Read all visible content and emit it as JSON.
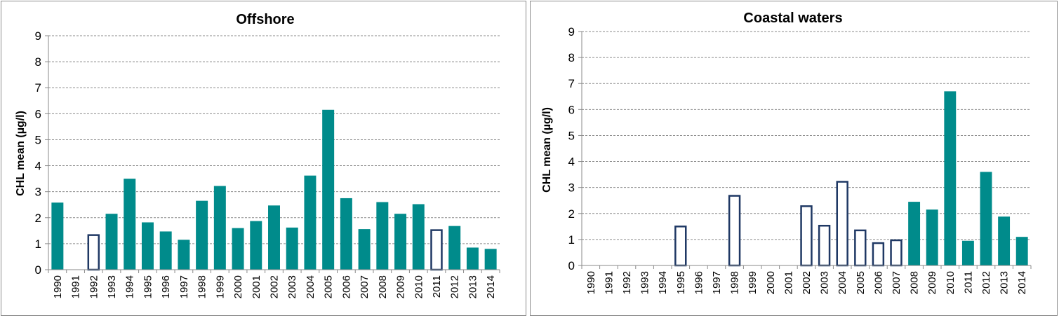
{
  "chart_data": [
    {
      "type": "bar",
      "title": "Offshore",
      "ylabel": "CHL mean  (µg/l)",
      "xlabel": "",
      "ylim": [
        0,
        9
      ],
      "yticks": [
        0,
        1,
        2,
        3,
        4,
        5,
        6,
        7,
        8,
        9
      ],
      "grid": "horizontal dashed",
      "colors": {
        "filled": "#008b8b",
        "outline": "#1f3864"
      },
      "categories": [
        "1990",
        "1991",
        "1992",
        "1993",
        "1994",
        "1995",
        "1996",
        "1997",
        "1998",
        "1999",
        "2000",
        "2001",
        "2002",
        "2003",
        "2004",
        "2005",
        "2006",
        "2007",
        "2008",
        "2009",
        "2010",
        "2011",
        "2012",
        "2013",
        "2014"
      ],
      "values": [
        2.58,
        null,
        1.33,
        2.15,
        3.5,
        1.82,
        1.47,
        1.15,
        2.65,
        3.22,
        1.6,
        1.87,
        2.47,
        1.62,
        3.62,
        6.15,
        2.75,
        1.56,
        2.6,
        2.15,
        2.52,
        1.52,
        1.68,
        0.85,
        0.8
      ],
      "styles": [
        "filled",
        "none",
        "outline",
        "filled",
        "filled",
        "filled",
        "filled",
        "filled",
        "filled",
        "filled",
        "filled",
        "filled",
        "filled",
        "filled",
        "filled",
        "filled",
        "filled",
        "filled",
        "filled",
        "filled",
        "filled",
        "outline",
        "filled",
        "filled",
        "filled"
      ]
    },
    {
      "type": "bar",
      "title": "Coastal waters",
      "ylabel": "CHL mean (µg/l)",
      "xlabel": "",
      "ylim": [
        0,
        9
      ],
      "yticks": [
        0,
        1,
        2,
        3,
        4,
        5,
        6,
        7,
        8,
        9
      ],
      "grid": "horizontal dashed",
      "colors": {
        "filled": "#008b8b",
        "outline": "#1f3864"
      },
      "categories": [
        "1990",
        "1991",
        "1992",
        "1993",
        "1994",
        "1995",
        "1996",
        "1997",
        "1998",
        "1999",
        "2000",
        "2001",
        "2002",
        "2003",
        "2004",
        "2005",
        "2006",
        "2007",
        "2008",
        "2009",
        "2010",
        "2011",
        "2012",
        "2013",
        "2014"
      ],
      "values": [
        null,
        null,
        null,
        null,
        null,
        1.5,
        null,
        null,
        2.68,
        null,
        null,
        null,
        2.28,
        1.53,
        3.22,
        1.35,
        0.86,
        0.97,
        2.45,
        2.15,
        6.7,
        0.95,
        3.6,
        1.88,
        1.1
      ],
      "styles": [
        "none",
        "none",
        "none",
        "none",
        "none",
        "outline",
        "none",
        "none",
        "outline",
        "none",
        "none",
        "none",
        "outline",
        "outline",
        "outline",
        "outline",
        "outline",
        "outline",
        "filled",
        "filled",
        "filled",
        "filled",
        "filled",
        "filled",
        "filled"
      ]
    }
  ]
}
